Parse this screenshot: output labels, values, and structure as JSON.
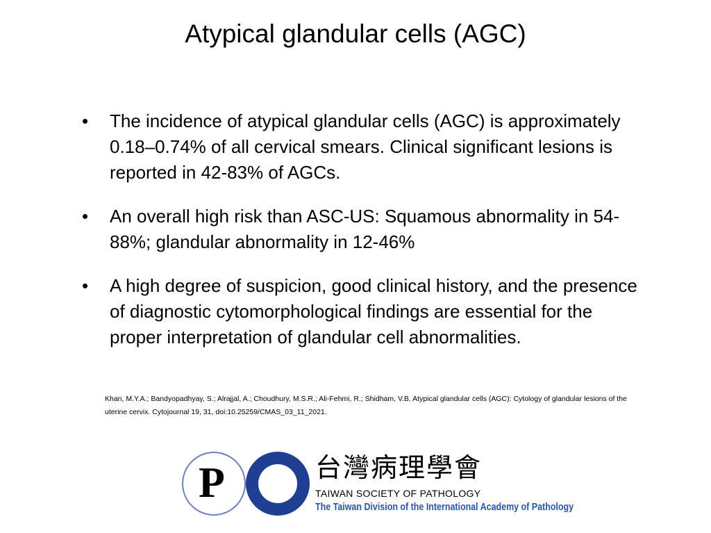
{
  "title": "Atypical glandular cells (AGC)",
  "bullets": [
    "The incidence of atypical glandular cells (AGC) is approximately 0.18–0.74% of all cervical smears. Clinical significant lesions is reported in 42-83% of AGCs.",
    "An overall high risk than ASC-US: Squamous abnormality in 54-88%; glandular abnormality in 12-46%",
    "A high degree of suspicion, good clinical history, and the presence of diagnostic cytomorphological findings are essential for the proper interpretation of glandular cell abnormalities."
  ],
  "bullet_symbol": "•",
  "citation_line1": "Khan, M.Y.A.; Bandyopadhyay, S.; Alrajjal, A.; Choudhury, M.S.R.; Ali-Fehmi, R.; Shidham, V.B. Atypical glandular cells (AGC): Cytology of glandular lesions of the",
  "citation_line2": "uterine cervix. Cytojournal 19, 31, doi:10.25259/CMAS_03_11_2021.",
  "footer": {
    "seal1_letter": "P",
    "seal1_text": "Taiwan Society of Pathology",
    "seal2_text": "INTERNATIONAL ACADEMY OF PATHOLOGY",
    "brand_chinese": "台灣病理學會",
    "brand_english": "TAIWAN SOCIETY OF PATHOLOGY",
    "brand_subtitle": "The Taiwan Division of the International Academy of Pathology",
    "accent_color": "#2a56a8"
  }
}
